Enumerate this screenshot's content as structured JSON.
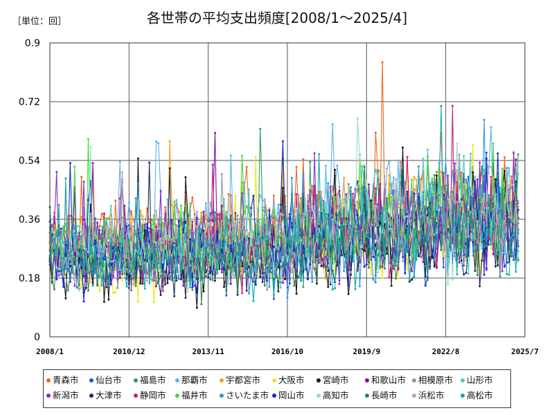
{
  "unit_label": "［単位：回］",
  "chart_data": {
    "type": "line",
    "title": "各世帯の平均支出頻度[2008/1～2025/4]",
    "xlabel": "",
    "ylabel": "",
    "x_range": [
      "2008/1",
      "2025/7"
    ],
    "ylim": [
      0,
      0.9
    ],
    "yticks": [
      "0",
      "0.18",
      "0.36",
      "0.54",
      "0.72",
      "0.9"
    ],
    "xticks": [
      "2008/1",
      "2010/12",
      "2013/11",
      "2016/10",
      "2019/9",
      "2022/8",
      "2025/7"
    ],
    "grid": true,
    "legend_position": "bottom",
    "series": [
      {
        "name": "青森市",
        "color": "#f0641e",
        "anchors": [
          0.31,
          0.3,
          0.32,
          0.34,
          0.33,
          0.36,
          0.38,
          0.4,
          0.42,
          0.45
        ]
      },
      {
        "name": "仙台市",
        "color": "#1e50dc",
        "anchors": [
          0.27,
          0.26,
          0.27,
          0.28,
          0.27,
          0.31,
          0.33,
          0.36,
          0.38,
          0.4
        ]
      },
      {
        "name": "福島市",
        "color": "#1ea064",
        "anchors": [
          0.26,
          0.26,
          0.27,
          0.28,
          0.28,
          0.31,
          0.34,
          0.37,
          0.4,
          0.42
        ]
      },
      {
        "name": "那覇市",
        "color": "#5ab4f0",
        "anchors": [
          0.3,
          0.29,
          0.31,
          0.33,
          0.34,
          0.38,
          0.42,
          0.41,
          0.4,
          0.41
        ]
      },
      {
        "name": "宇都宮市",
        "color": "#f5a014",
        "anchors": [
          0.28,
          0.27,
          0.29,
          0.3,
          0.3,
          0.33,
          0.35,
          0.37,
          0.38,
          0.4
        ]
      },
      {
        "name": "大阪市",
        "color": "#f0e614",
        "anchors": [
          0.24,
          0.23,
          0.24,
          0.25,
          0.25,
          0.27,
          0.29,
          0.31,
          0.32,
          0.33
        ]
      },
      {
        "name": "宮崎市",
        "color": "#141414",
        "anchors": [
          0.23,
          0.22,
          0.23,
          0.24,
          0.24,
          0.27,
          0.29,
          0.31,
          0.33,
          0.34
        ]
      },
      {
        "name": "和歌山市",
        "color": "#7814a0",
        "anchors": [
          0.26,
          0.26,
          0.27,
          0.27,
          0.27,
          0.3,
          0.32,
          0.34,
          0.36,
          0.37
        ]
      },
      {
        "name": "相模原市",
        "color": "#8c96a0",
        "anchors": [
          0.27,
          0.27,
          0.27,
          0.28,
          0.28,
          0.3,
          0.32,
          0.34,
          0.35,
          0.36
        ]
      },
      {
        "name": "山形市",
        "color": "#50c8c8",
        "anchors": [
          0.28,
          0.27,
          0.28,
          0.29,
          0.29,
          0.32,
          0.34,
          0.36,
          0.37,
          0.38
        ]
      },
      {
        "name": "新潟市",
        "color": "#8c28dc",
        "anchors": [
          0.25,
          0.25,
          0.26,
          0.27,
          0.27,
          0.3,
          0.32,
          0.34,
          0.36,
          0.37
        ]
      },
      {
        "name": "大津市",
        "color": "#14285a",
        "anchors": [
          0.23,
          0.22,
          0.23,
          0.24,
          0.24,
          0.27,
          0.29,
          0.31,
          0.32,
          0.33
        ]
      },
      {
        "name": "静岡市",
        "color": "#c81e78",
        "anchors": [
          0.26,
          0.26,
          0.26,
          0.27,
          0.27,
          0.3,
          0.32,
          0.34,
          0.35,
          0.36
        ]
      },
      {
        "name": "福井市",
        "color": "#3cdc3c",
        "anchors": [
          0.29,
          0.28,
          0.29,
          0.3,
          0.3,
          0.33,
          0.35,
          0.37,
          0.39,
          0.4
        ]
      },
      {
        "name": "さいたま市",
        "color": "#2896dc",
        "anchors": [
          0.25,
          0.25,
          0.26,
          0.26,
          0.27,
          0.29,
          0.31,
          0.33,
          0.34,
          0.35
        ]
      },
      {
        "name": "岡山市",
        "color": "#1428c8",
        "anchors": [
          0.25,
          0.24,
          0.25,
          0.26,
          0.26,
          0.29,
          0.31,
          0.33,
          0.34,
          0.35
        ]
      },
      {
        "name": "高知市",
        "color": "#96dcc8",
        "anchors": [
          0.26,
          0.25,
          0.26,
          0.27,
          0.27,
          0.3,
          0.32,
          0.34,
          0.35,
          0.36
        ]
      },
      {
        "name": "長崎市",
        "color": "#32825a",
        "anchors": [
          0.22,
          0.22,
          0.23,
          0.24,
          0.24,
          0.27,
          0.29,
          0.31,
          0.33,
          0.34
        ]
      },
      {
        "name": "浜松市",
        "color": "#c8a096",
        "anchors": [
          0.29,
          0.28,
          0.29,
          0.3,
          0.3,
          0.33,
          0.35,
          0.37,
          0.39,
          0.41
        ]
      },
      {
        "name": "高松市",
        "color": "#14aaaa",
        "anchors": [
          0.24,
          0.23,
          0.24,
          0.25,
          0.25,
          0.28,
          0.3,
          0.32,
          0.33,
          0.34
        ]
      }
    ]
  }
}
